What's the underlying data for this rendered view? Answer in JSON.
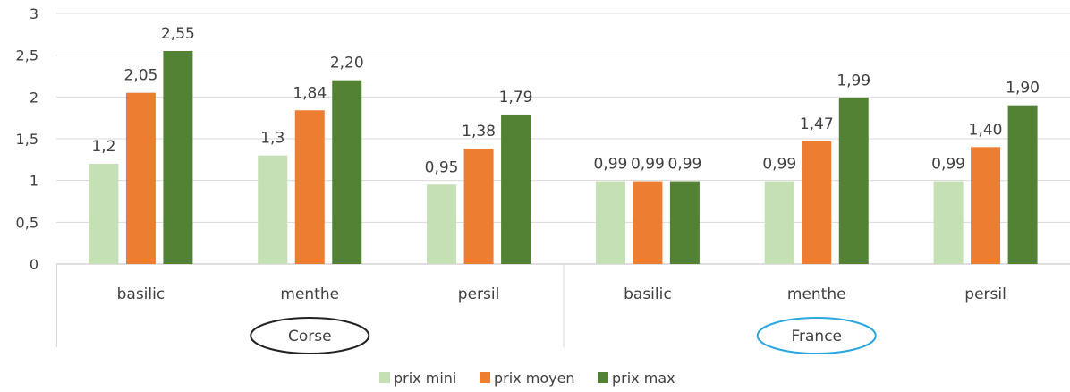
{
  "chart_data": {
    "type": "bar",
    "groups": [
      {
        "name": "Corse",
        "categories": [
          "basilic",
          "menthe",
          "persil"
        ]
      },
      {
        "name": "France",
        "categories": [
          "basilic",
          "menthe",
          "persil"
        ]
      }
    ],
    "categories": [
      "basilic",
      "menthe",
      "persil",
      "basilic",
      "menthe",
      "persil"
    ],
    "series": [
      {
        "name": "prix mini",
        "color": "#c5e0b4",
        "values": [
          1.2,
          1.3,
          0.95,
          0.99,
          0.99,
          0.99
        ]
      },
      {
        "name": "prix moyen",
        "color": "#ed7d31",
        "values": [
          2.05,
          1.84,
          1.38,
          0.99,
          1.47,
          1.4
        ]
      },
      {
        "name": "prix max",
        "color": "#548235",
        "values": [
          2.55,
          2.2,
          1.79,
          0.99,
          1.99,
          1.9
        ]
      }
    ],
    "data_labels": [
      [
        "1,2",
        "1,3",
        "0,95",
        "0,99",
        "0,99",
        "0,99"
      ],
      [
        "2,05",
        "1,84",
        "1,38",
        "0,99",
        "1,47",
        "1,40"
      ],
      [
        "2,55",
        "2,20",
        "1,79",
        "0,99",
        "1,99",
        "1,90"
      ]
    ],
    "y_ticks": [
      "0",
      "0,5",
      "1",
      "1,5",
      "2",
      "2,5",
      "3"
    ],
    "ylim": [
      0,
      3
    ],
    "grid": true,
    "legend": "bottom",
    "group_circle_colors": [
      "#222222",
      "#2aa7e0"
    ],
    "title": "",
    "xlabel": "",
    "ylabel": ""
  }
}
